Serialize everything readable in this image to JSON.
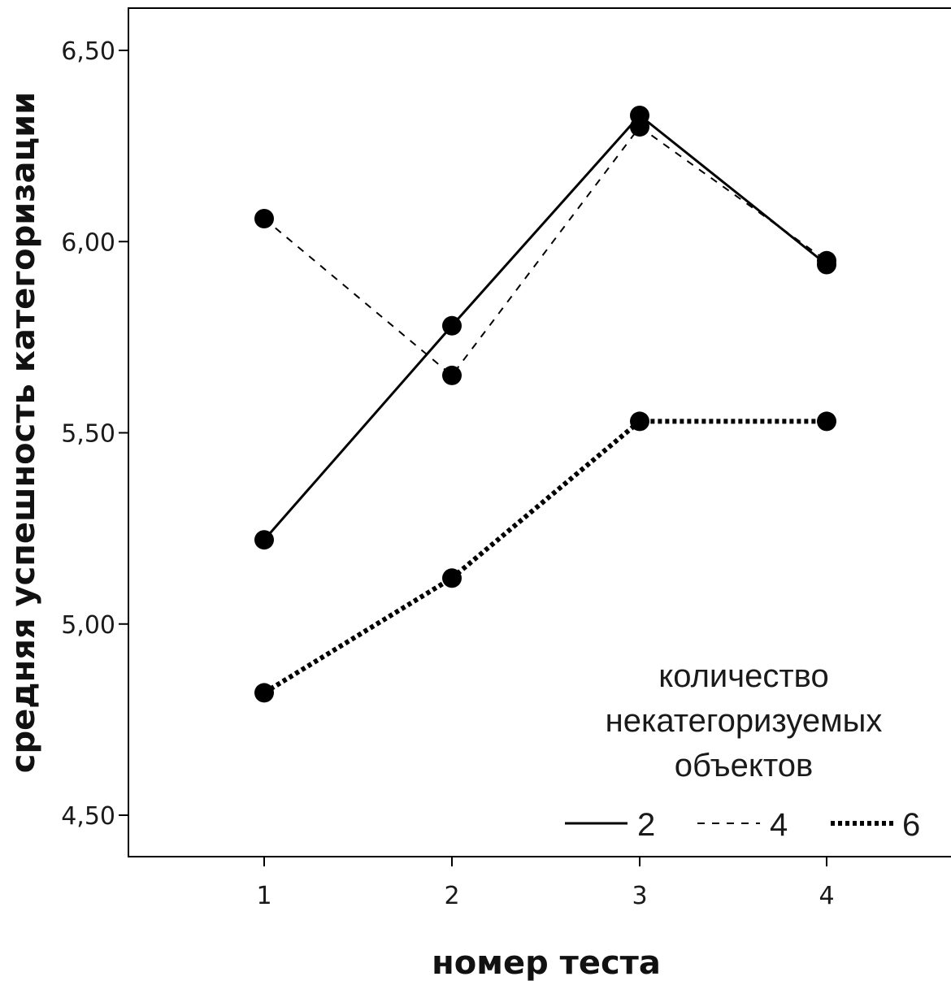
{
  "chart_data": {
    "type": "line",
    "xlabel": "номер теста",
    "ylabel": "средняя успешность категоризации",
    "categories": [
      "1",
      "2",
      "3",
      "4"
    ],
    "ylim": [
      4.39,
      6.61
    ],
    "yticks": [
      "4,50",
      "5,00",
      "5,50",
      "6,00",
      "6,50"
    ],
    "ytick_values": [
      4.5,
      5.0,
      5.5,
      6.0,
      6.5
    ],
    "grid": false,
    "legend": {
      "title_lines": [
        "количество",
        "некатегоризуемых",
        "объектов"
      ],
      "placement": "bottom-right"
    },
    "series": [
      {
        "name": "2",
        "values": [
          5.22,
          5.78,
          6.33,
          5.94
        ],
        "style": "solid"
      },
      {
        "name": "4",
        "values": [
          6.06,
          5.65,
          6.3,
          5.95
        ],
        "style": "dashed"
      },
      {
        "name": "6",
        "values": [
          4.82,
          5.12,
          5.53,
          5.53
        ],
        "style": "dotted"
      }
    ]
  }
}
